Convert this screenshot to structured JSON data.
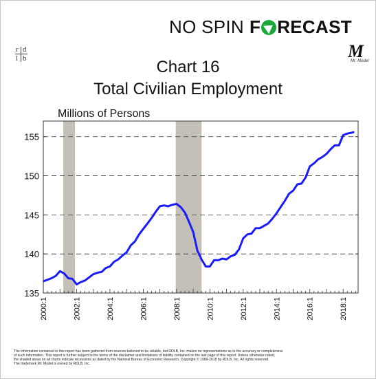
{
  "brand": {
    "prefix": "NO SPIN",
    "main_pre": "F",
    "main_post": "RECAST"
  },
  "rdb_logo": {
    "top_left": "r",
    "top_right": "d",
    "bottom_left": "l",
    "bottom_right": "b"
  },
  "mr_model": {
    "letter": "M",
    "caption": "Mr. Model"
  },
  "footer": {
    "line1": "The information contained in this report has been gathered from sources believed to be reliable, but RDLB, Inc. makes no representations as to the accuracy or completeness",
    "line2": "of such information. This report is further subject to the terms of the disclaimer and limitations of liability contained on the last page of this report. Unless otherwise noted,",
    "line3": "the shaded areas on all charts indicate recessions as dated by the National Bureau of Economic Research. Copyright © 1989-2018 by RDLB, Inc. All rights reserved.",
    "line4": "The trademark Mr. Model is owned by RDLB, Inc."
  },
  "chart_data": {
    "type": "line",
    "title": "Chart 16",
    "subtitle": "Total Civilian Employment",
    "ylabel": "Millions of Persons",
    "ylim": [
      135,
      157
    ],
    "xlim": [
      2000.0,
      2018.9
    ],
    "yticks": [
      135,
      140,
      145,
      150,
      155
    ],
    "xticks": [
      "2000:1",
      "2002:1",
      "2004:1",
      "2006:1",
      "2008:1",
      "2010:1",
      "2012:1",
      "2014:1",
      "2016:1",
      "2018:1"
    ],
    "grid": true,
    "line_color": "#1a1aff",
    "recession_color": "#c4c0b8",
    "recessions": [
      [
        2001.2,
        2001.9
      ],
      [
        2007.95,
        2009.5
      ]
    ],
    "series": [
      {
        "x": [
          2000.0,
          2000.25,
          2000.5,
          2000.75,
          2001.0,
          2001.25,
          2001.5,
          2001.75,
          2002.0,
          2002.25,
          2002.5,
          2002.75,
          2003.0,
          2003.25,
          2003.5,
          2003.75,
          2004.0,
          2004.25,
          2004.5,
          2004.75,
          2005.0,
          2005.25,
          2005.5,
          2005.75,
          2006.0,
          2006.25,
          2006.5,
          2006.75,
          2007.0,
          2007.25,
          2007.5,
          2007.75,
          2008.0,
          2008.25,
          2008.5,
          2008.75,
          2009.0,
          2009.25,
          2009.5,
          2009.75,
          2010.0,
          2010.25,
          2010.5,
          2010.75,
          2011.0,
          2011.25,
          2011.5,
          2011.75,
          2012.0,
          2012.25,
          2012.5,
          2012.75,
          2013.0,
          2013.25,
          2013.5,
          2013.75,
          2014.0,
          2014.25,
          2014.5,
          2014.75,
          2015.0,
          2015.25,
          2015.5,
          2015.75,
          2016.0,
          2016.25,
          2016.5,
          2016.75,
          2017.0,
          2017.25,
          2017.5,
          2017.75,
          2018.0,
          2018.25,
          2018.5,
          2018.65
        ],
        "values": [
          136.5,
          136.7,
          136.9,
          137.2,
          137.8,
          137.5,
          136.9,
          136.8,
          136.1,
          136.4,
          136.6,
          137.0,
          137.4,
          137.6,
          137.7,
          138.2,
          138.4,
          139.0,
          139.3,
          139.8,
          140.2,
          141.1,
          141.6,
          142.5,
          143.2,
          143.9,
          144.6,
          145.4,
          146.1,
          146.2,
          146.1,
          146.3,
          146.4,
          146.0,
          145.3,
          144.1,
          142.8,
          140.4,
          139.3,
          138.4,
          138.4,
          139.2,
          139.2,
          139.4,
          139.3,
          139.7,
          139.9,
          140.6,
          142.0,
          142.5,
          142.6,
          143.3,
          143.3,
          143.6,
          143.9,
          144.5,
          145.2,
          146.0,
          146.8,
          147.7,
          148.1,
          148.9,
          149.0,
          149.8,
          151.2,
          151.6,
          152.1,
          152.4,
          152.8,
          153.4,
          153.9,
          153.9,
          155.2,
          155.4,
          155.5,
          155.6
        ]
      }
    ]
  }
}
